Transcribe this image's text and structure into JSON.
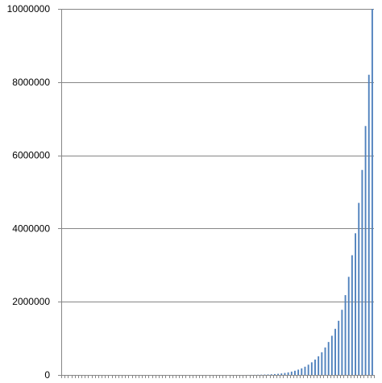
{
  "chart_data": {
    "type": "bar",
    "title": "",
    "xlabel": "",
    "ylabel": "",
    "ylim": [
      0,
      10000000
    ],
    "yticks": [
      0,
      2000000,
      4000000,
      6000000,
      8000000,
      10000000
    ],
    "ytick_labels": [
      "0",
      "2000000",
      "4000000",
      "6000000",
      "8000000",
      "10000000"
    ],
    "grid": "horizontal",
    "legend": "none",
    "bar_color": "#4f81bd",
    "grid_color": "#868686",
    "series": [
      {
        "values": [
          0,
          0,
          0,
          0,
          0,
          0,
          0,
          0,
          0,
          0,
          0,
          0,
          0,
          0,
          0,
          0,
          0,
          0,
          0,
          0,
          0,
          0,
          0,
          0,
          0,
          0,
          0,
          0,
          0,
          0,
          0,
          0,
          0,
          0,
          0,
          0,
          0,
          0,
          0,
          0,
          0,
          0,
          0,
          0,
          0,
          0,
          0,
          0,
          0,
          0,
          0,
          0,
          0,
          0,
          0,
          1000,
          2000,
          3000,
          5000,
          7000,
          10000,
          13000,
          18000,
          24000,
          31000,
          41000,
          54000,
          70000,
          91000,
          115000,
          145000,
          180000,
          225000,
          280000,
          345000,
          420000,
          510000,
          620000,
          750000,
          900000,
          1070000,
          1260000,
          1480000,
          1780000,
          2180000,
          2680000,
          3270000,
          3870000,
          4700000,
          5600000,
          6800000,
          8200000,
          10000000
        ]
      }
    ]
  }
}
